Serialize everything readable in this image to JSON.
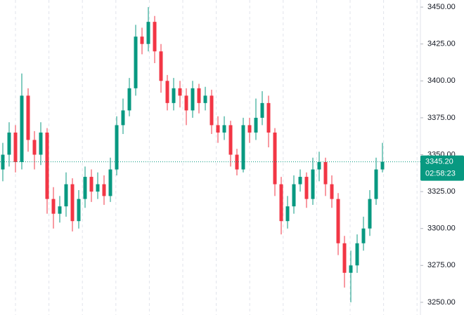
{
  "chart_data": {
    "type": "candlestick",
    "open": [
      3340,
      3350,
      3365,
      3345,
      3390,
      3360,
      3350,
      3365,
      3320,
      3310,
      3315,
      3330,
      3305,
      3320,
      3335,
      3325,
      3330,
      3322,
      3340,
      3370,
      3380,
      3395,
      3430,
      3425,
      3440,
      3420,
      3400,
      3385,
      3395,
      3390,
      3380,
      3395,
      3385,
      3390,
      3370,
      3365,
      3370,
      3350,
      3340,
      3370,
      3365,
      3375,
      3385,
      3365,
      3330,
      3305,
      3315,
      3330,
      3335,
      3320,
      3340,
      3345,
      3330,
      3320,
      3290,
      3270,
      3275,
      3290,
      3300,
      3320,
      3340
    ],
    "high": [
      3358,
      3372,
      3370,
      3405,
      3395,
      3366,
      3372,
      3368,
      3328,
      3322,
      3338,
      3334,
      3326,
      3342,
      3340,
      3338,
      3336,
      3348,
      3376,
      3388,
      3402,
      3438,
      3436,
      3450,
      3444,
      3425,
      3404,
      3402,
      3400,
      3395,
      3400,
      3398,
      3396,
      3394,
      3376,
      3376,
      3373,
      3354,
      3375,
      3375,
      3388,
      3393,
      3390,
      3368,
      3335,
      3322,
      3336,
      3340,
      3338,
      3348,
      3352,
      3348,
      3336,
      3324,
      3295,
      3285,
      3296,
      3308,
      3326,
      3348,
      3358
    ],
    "low": [
      3332,
      3342,
      3338,
      3340,
      3352,
      3340,
      3343,
      3310,
      3300,
      3304,
      3308,
      3298,
      3300,
      3314,
      3318,
      3320,
      3316,
      3318,
      3336,
      3364,
      3376,
      3390,
      3418,
      3420,
      3412,
      3392,
      3380,
      3380,
      3382,
      3370,
      3375,
      3378,
      3380,
      3364,
      3358,
      3360,
      3342,
      3336,
      3338,
      3358,
      3360,
      3370,
      3355,
      3322,
      3296,
      3300,
      3310,
      3325,
      3314,
      3316,
      3332,
      3322,
      3314,
      3282,
      3260,
      3250,
      3270,
      3285,
      3295,
      3316,
      3338
    ],
    "close": [
      3350,
      3365,
      3345,
      3390,
      3360,
      3350,
      3365,
      3320,
      3310,
      3315,
      3330,
      3305,
      3320,
      3335,
      3325,
      3330,
      3322,
      3340,
      3370,
      3380,
      3395,
      3430,
      3425,
      3440,
      3420,
      3400,
      3385,
      3395,
      3390,
      3380,
      3395,
      3385,
      3390,
      3370,
      3365,
      3370,
      3350,
      3340,
      3370,
      3365,
      3375,
      3385,
      3365,
      3330,
      3305,
      3315,
      3330,
      3335,
      3320,
      3340,
      3345,
      3330,
      3320,
      3290,
      3270,
      3275,
      3290,
      3300,
      3320,
      3340,
      3345.2
    ],
    "up_color": "#089981",
    "down_color": "#f23645",
    "ylim": [
      3241.4,
      3454.8
    ],
    "yticks": [
      {
        "value": 3250,
        "label": "3250.00"
      },
      {
        "value": 3275,
        "label": "3275.00"
      },
      {
        "value": 3300,
        "label": "3300.00"
      },
      {
        "value": 3325,
        "label": "3325.00"
      },
      {
        "value": 3350,
        "label": "3350.00"
      },
      {
        "value": 3375,
        "label": "3375.00"
      },
      {
        "value": 3400,
        "label": "3400.00"
      },
      {
        "value": 3425,
        "label": "3425.00"
      },
      {
        "value": 3450,
        "label": "3450.00"
      }
    ],
    "last_price": {
      "value": 3345.2,
      "label": "3345.20"
    },
    "countdown": "02:58:23"
  }
}
